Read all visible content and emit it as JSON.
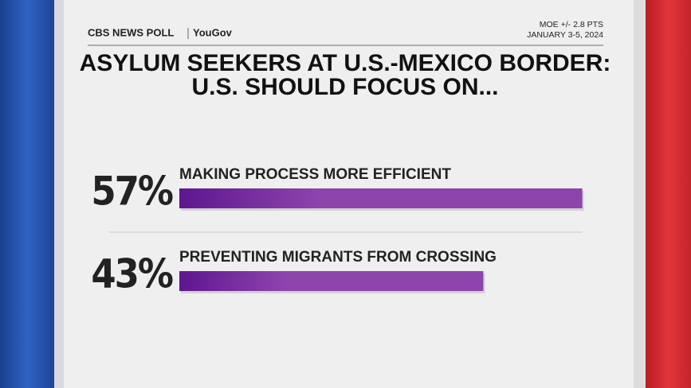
{
  "chart_data": {
    "type": "bar",
    "orientation": "horizontal",
    "source": "CBS NEWS POLL",
    "partner": "YouGov",
    "note": "MOE +/- 2.8 PTS",
    "date": "JANUARY 3-5, 2024",
    "title": [
      "ASYLUM SEEKERS AT U.S.-MEXICO BORDER:",
      "U.S. SHOULD FOCUS ON..."
    ],
    "categories": [
      "MAKING PROCESS MORE EFFICIENT",
      "PREVENTING MIGRANTS FROM CROSSING"
    ],
    "values": [
      57,
      43
    ],
    "value_labels": [
      "57%",
      "43%"
    ],
    "color": "#8e44ad"
  }
}
